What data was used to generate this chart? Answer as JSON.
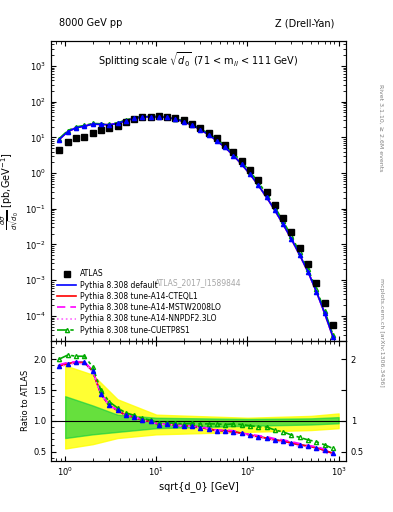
{
  "title_left": "8000 GeV pp",
  "title_right": "Z (Drell-Yan)",
  "plot_title": "Splitting scale $\\sqrt{d_0}$ (71 < m$_{ll}$ < 111 GeV)",
  "watermark": "ATLAS_2017_I1589844",
  "right_label_top": "Rivet 3.1.10, ≥ 2.6M events",
  "right_label_bottom": "mcplots.cern.ch [arXiv:1306.3436]",
  "ylabel_main": "dσ\n/dsqrt(d_0) [pb,GeV⁻¹]",
  "ylabel_ratio": "Ratio to ATLAS",
  "xlabel": "sqrt{d_0} [GeV]",
  "xlim": [
    0.7,
    1200
  ],
  "ylim_main": [
    2e-05,
    5000
  ],
  "ylim_ratio": [
    0.35,
    2.3
  ],
  "atlas_x": [
    0.85,
    1.07,
    1.31,
    1.62,
    2.0,
    2.46,
    3.04,
    3.75,
    4.62,
    5.7,
    7.02,
    8.65,
    10.7,
    13.1,
    16.2,
    20.0,
    24.6,
    30.4,
    37.5,
    46.2,
    57.0,
    70.2,
    86.5,
    107,
    131,
    162,
    200,
    246,
    304,
    375,
    462,
    570,
    702,
    865
  ],
  "atlas_y": [
    4.5,
    7.5,
    9.5,
    10.5,
    13.0,
    16.0,
    18.0,
    21.0,
    27.0,
    32.0,
    37.0,
    38.0,
    40.0,
    38.0,
    35.0,
    30.0,
    24.0,
    18.5,
    13.5,
    9.5,
    6.2,
    3.8,
    2.2,
    1.2,
    0.62,
    0.29,
    0.13,
    0.055,
    0.022,
    0.0082,
    0.0029,
    0.00085,
    0.00023,
    5.5e-05
  ],
  "py_x": [
    0.85,
    1.07,
    1.31,
    1.62,
    2.0,
    2.46,
    3.04,
    3.75,
    4.62,
    5.7,
    7.02,
    8.65,
    10.7,
    13.1,
    16.2,
    20.0,
    24.6,
    30.4,
    37.5,
    46.2,
    57.0,
    70.2,
    86.5,
    107,
    131,
    162,
    200,
    246,
    304,
    375,
    462,
    570,
    702,
    865
  ],
  "py_default_y": [
    8.5,
    14.5,
    18.5,
    20.5,
    23.5,
    23.0,
    22.5,
    24.5,
    29.5,
    34.0,
    37.5,
    37.5,
    37.5,
    36.0,
    32.5,
    27.5,
    22.0,
    16.5,
    11.8,
    8.0,
    5.2,
    3.1,
    1.75,
    0.92,
    0.46,
    0.21,
    0.09,
    0.037,
    0.014,
    0.005,
    0.0017,
    0.00048,
    0.00012,
    2.6e-05
  ],
  "py_cteq_y": [
    8.5,
    14.5,
    18.5,
    20.5,
    23.5,
    23.0,
    22.5,
    24.5,
    29.5,
    34.0,
    37.5,
    37.5,
    37.5,
    36.0,
    32.5,
    27.5,
    22.0,
    16.5,
    11.8,
    8.0,
    5.2,
    3.1,
    1.75,
    0.92,
    0.46,
    0.21,
    0.09,
    0.037,
    0.014,
    0.005,
    0.0017,
    0.00048,
    0.00012,
    2.6e-05
  ],
  "py_mstw_y": [
    8.6,
    14.6,
    18.6,
    20.6,
    23.6,
    23.1,
    22.6,
    24.6,
    29.6,
    34.1,
    37.6,
    37.6,
    37.6,
    36.1,
    32.6,
    27.6,
    22.1,
    16.6,
    11.9,
    8.1,
    5.3,
    3.2,
    1.76,
    0.93,
    0.47,
    0.215,
    0.092,
    0.038,
    0.0145,
    0.0052,
    0.00175,
    0.00049,
    0.000125,
    2.7e-05
  ],
  "py_nnpdf_y": [
    8.4,
    14.4,
    18.4,
    20.4,
    23.4,
    22.9,
    22.4,
    24.4,
    29.4,
    33.9,
    37.4,
    37.4,
    37.4,
    35.9,
    32.4,
    27.4,
    21.9,
    16.4,
    11.7,
    7.9,
    5.1,
    3.0,
    1.74,
    0.91,
    0.455,
    0.205,
    0.088,
    0.036,
    0.0135,
    0.0048,
    0.00165,
    0.00046,
    0.00011,
    2.5e-05
  ],
  "py_cuetp_y": [
    9.0,
    15.5,
    19.5,
    21.5,
    24.5,
    24.0,
    23.5,
    25.5,
    30.5,
    35.0,
    38.5,
    38.5,
    38.5,
    37.0,
    33.5,
    28.5,
    23.0,
    17.5,
    12.8,
    9.0,
    5.8,
    3.6,
    2.05,
    1.1,
    0.56,
    0.26,
    0.11,
    0.045,
    0.017,
    0.006,
    0.002,
    0.00056,
    0.00014,
    3e-05
  ],
  "ratio_default": [
    1.89,
    1.93,
    1.95,
    1.95,
    1.81,
    1.44,
    1.25,
    1.17,
    1.09,
    1.06,
    1.01,
    0.99,
    0.94,
    0.95,
    0.93,
    0.92,
    0.92,
    0.89,
    0.87,
    0.84,
    0.84,
    0.82,
    0.8,
    0.77,
    0.74,
    0.72,
    0.69,
    0.67,
    0.64,
    0.61,
    0.59,
    0.56,
    0.52,
    0.47
  ],
  "ratio_cteq": [
    1.89,
    1.93,
    1.95,
    1.95,
    1.81,
    1.44,
    1.25,
    1.17,
    1.09,
    1.06,
    1.01,
    0.99,
    0.94,
    0.95,
    0.93,
    0.92,
    0.92,
    0.89,
    0.87,
    0.84,
    0.84,
    0.82,
    0.8,
    0.77,
    0.74,
    0.72,
    0.69,
    0.67,
    0.64,
    0.61,
    0.59,
    0.56,
    0.52,
    0.47
  ],
  "ratio_mstw": [
    1.91,
    1.95,
    1.96,
    1.96,
    1.82,
    1.44,
    1.26,
    1.17,
    1.09,
    1.07,
    1.02,
    0.99,
    0.94,
    0.95,
    0.93,
    0.92,
    0.92,
    0.9,
    0.88,
    0.85,
    0.85,
    0.84,
    0.8,
    0.78,
    0.76,
    0.74,
    0.71,
    0.69,
    0.66,
    0.63,
    0.6,
    0.58,
    0.54,
    0.49
  ],
  "ratio_nnpdf": [
    1.87,
    1.92,
    1.93,
    1.93,
    1.8,
    1.43,
    1.24,
    1.16,
    1.09,
    1.06,
    1.01,
    0.98,
    0.94,
    0.94,
    0.93,
    0.91,
    0.91,
    0.89,
    0.87,
    0.83,
    0.82,
    0.79,
    0.79,
    0.76,
    0.73,
    0.71,
    0.68,
    0.65,
    0.61,
    0.59,
    0.57,
    0.54,
    0.48,
    0.45
  ],
  "ratio_cuetp": [
    2.0,
    2.07,
    2.05,
    2.05,
    1.88,
    1.5,
    1.31,
    1.21,
    1.13,
    1.09,
    1.04,
    1.01,
    0.96,
    0.97,
    0.96,
    0.95,
    0.96,
    0.95,
    0.95,
    0.95,
    0.94,
    0.95,
    0.94,
    0.92,
    0.9,
    0.9,
    0.85,
    0.82,
    0.77,
    0.73,
    0.69,
    0.66,
    0.61,
    0.55
  ],
  "band_yellow_x": [
    1.0,
    2.0,
    3.75,
    10.0,
    100.0,
    500.0,
    1000.0
  ],
  "band_yellow_lo": [
    0.55,
    0.62,
    0.72,
    0.78,
    0.82,
    0.85,
    0.88
  ],
  "band_yellow_hi": [
    1.9,
    1.75,
    1.35,
    1.1,
    1.05,
    1.08,
    1.12
  ],
  "band_green_x": [
    1.0,
    2.0,
    3.75,
    10.0,
    100.0,
    500.0,
    1000.0
  ],
  "band_green_lo": [
    0.72,
    0.78,
    0.82,
    0.88,
    0.92,
    0.94,
    0.96
  ],
  "band_green_hi": [
    1.4,
    1.25,
    1.1,
    1.05,
    1.03,
    1.04,
    1.06
  ],
  "color_default": "#0000ff",
  "color_cteq": "#ff0000",
  "color_mstw": "#ff00ff",
  "color_nnpdf": "#ff66ff",
  "color_cuetp": "#00aa00",
  "color_atlas": "#000000"
}
